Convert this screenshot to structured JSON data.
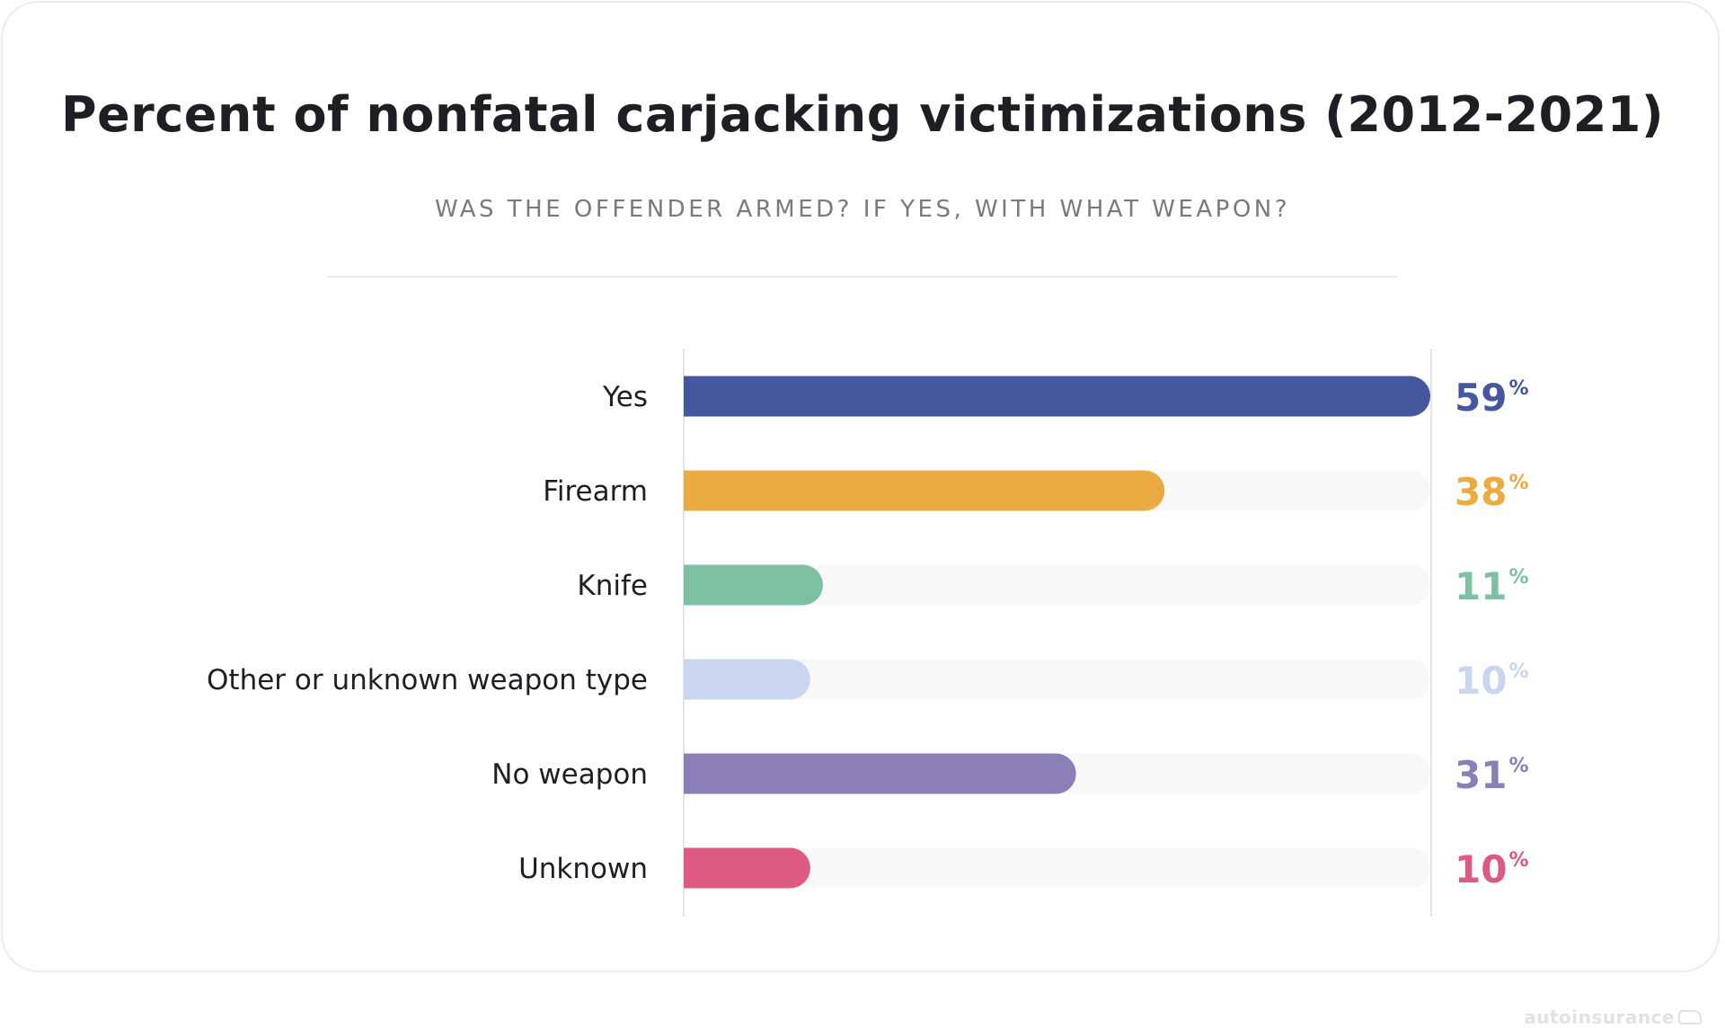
{
  "chart_data": {
    "type": "bar",
    "orientation": "horizontal",
    "title": "Percent of nonfatal carjacking victimizations (2012-2021)",
    "subtitle": "WAS THE OFFENDER ARMED? IF YES, WITH WHAT WEAPON?",
    "categories": [
      "Yes",
      "Firearm",
      "Knife",
      "Other or unknown weapon type",
      "No weapon",
      "Unknown"
    ],
    "values": [
      59,
      38,
      11,
      10,
      31,
      10
    ],
    "value_suffix": "%",
    "colors": [
      "#45579f",
      "#ebab40",
      "#7dc0a2",
      "#c8d6ef",
      "#8c7fb6",
      "#dd5a82"
    ],
    "xlim": [
      0,
      59
    ],
    "xlabel": "",
    "ylabel": "",
    "grid": false
  },
  "watermark": "autoinsurance"
}
